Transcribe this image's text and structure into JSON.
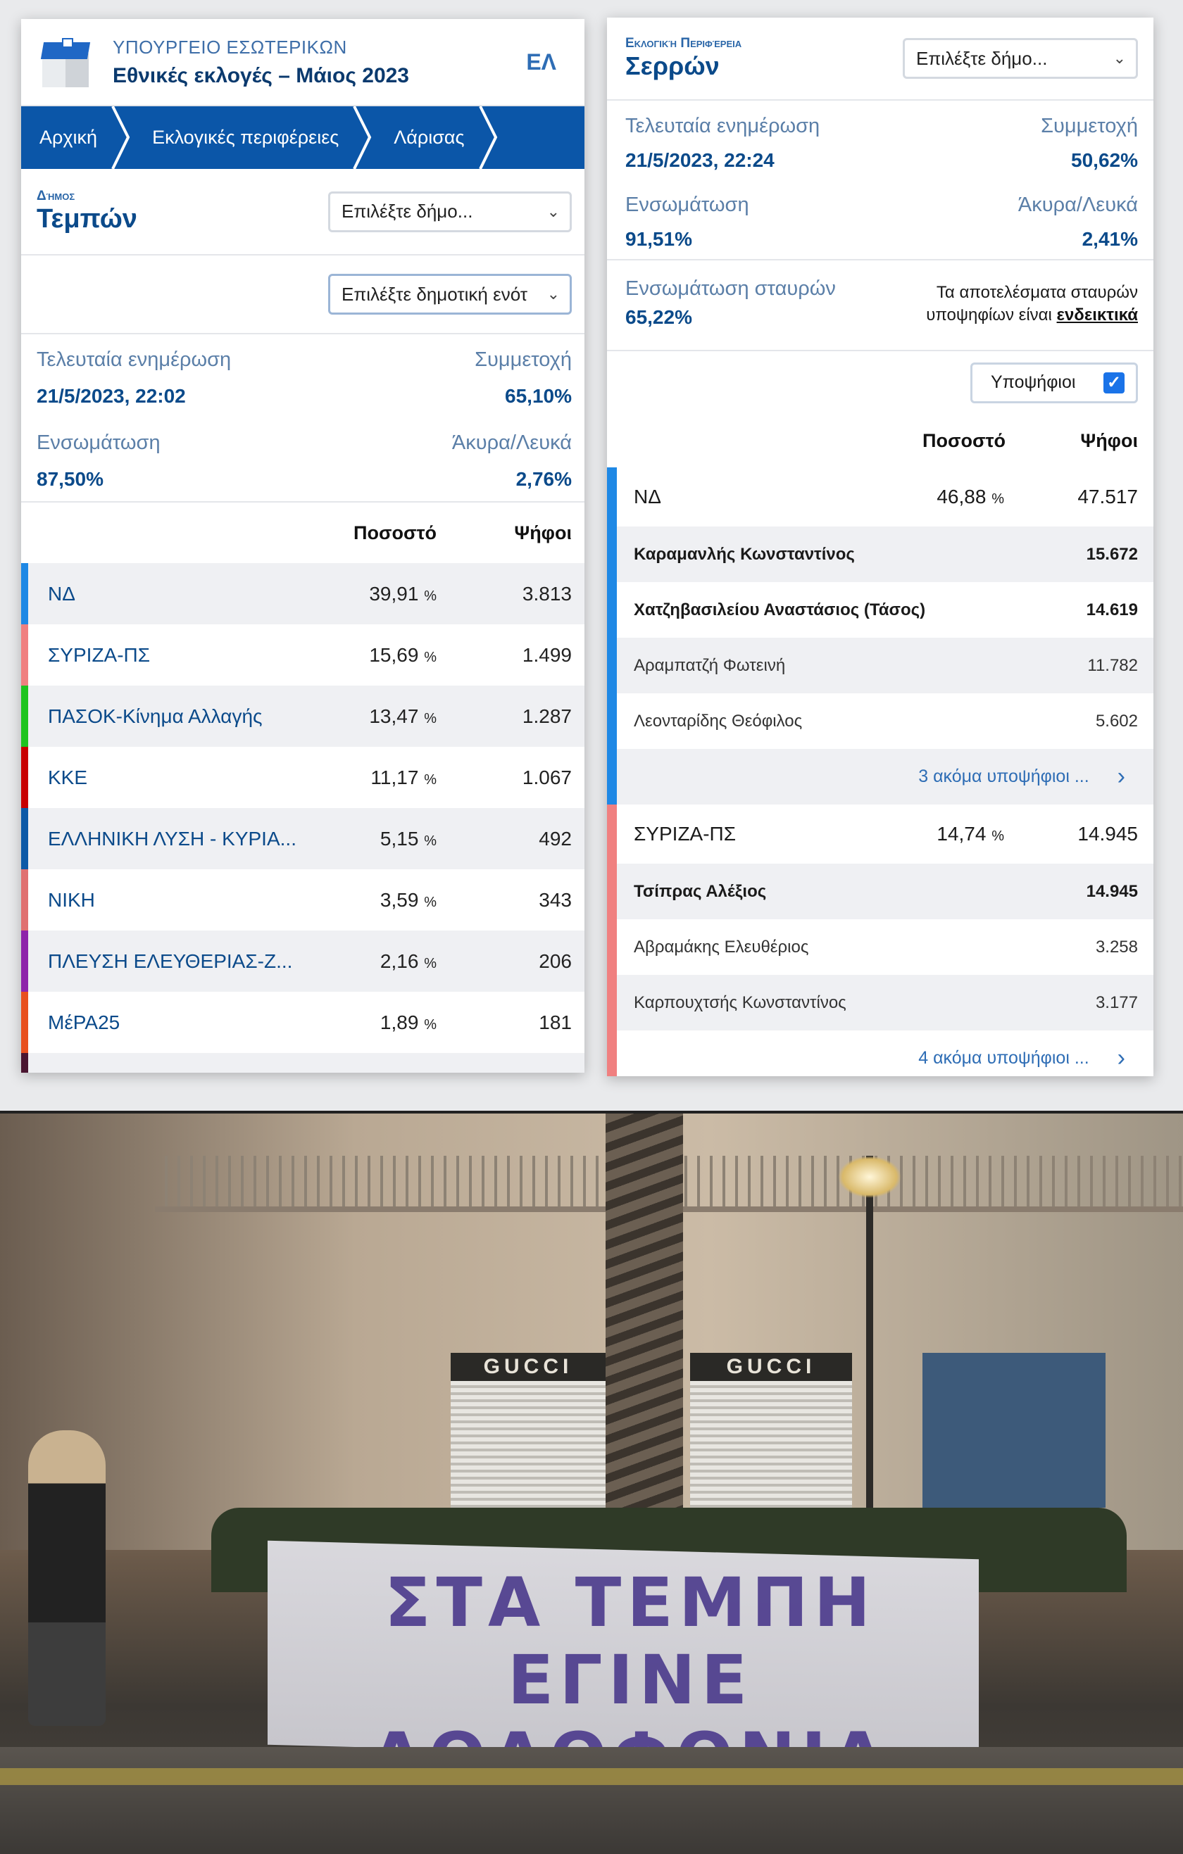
{
  "left_panel": {
    "header": {
      "ministry": "ΥΠΟΥΡΓΕΙΟ ΕΣΩΤΕΡΙΚΩΝ",
      "title": "Εθνικές εκλογές – Μάιος 2023",
      "language": "ΕΛ"
    },
    "breadcrumb": [
      "Αρχική",
      "Εκλογικές περιφέρειες",
      "Λάρισας"
    ],
    "area": {
      "caption": "Δήμος",
      "name": "Τεμπών",
      "select_placeholder": "Επιλέξτε δήμο...",
      "unit_select_placeholder": "Επιλέξτε δημοτική ενότ"
    },
    "stats": {
      "last_update_label": "Τελευταία ενημέρωση",
      "last_update": "21/5/2023, 22:02",
      "turnout_label": "Συμμετοχή",
      "turnout": "65,10%",
      "integration_label": "Ενσωμάτωση",
      "integration": "87,50%",
      "invalid_label": "Άκυρα/Λευκά",
      "invalid": "2,76%"
    },
    "table": {
      "headers": {
        "percent": "Ποσοστό",
        "votes": "Ψήφοι"
      },
      "rows": [
        {
          "party": "ΝΔ",
          "percent": "39,91",
          "votes": "3.813",
          "color": "#1e88e5"
        },
        {
          "party": "ΣΥΡΙΖΑ-ΠΣ",
          "percent": "15,69",
          "votes": "1.499",
          "color": "#f08080"
        },
        {
          "party": "ΠΑΣΟΚ-Κίνημα Αλλαγής",
          "percent": "13,47",
          "votes": "1.287",
          "color": "#1fc41f"
        },
        {
          "party": "ΚΚΕ",
          "percent": "11,17",
          "votes": "1.067",
          "color": "#c80000"
        },
        {
          "party": "ΕΛΛΗΝΙΚΗ ΛΥΣΗ - ΚΥΡΙΑ...",
          "percent": "5,15",
          "votes": "492",
          "color": "#0d5aa7"
        },
        {
          "party": "ΝΙΚΗ",
          "percent": "3,59",
          "votes": "343",
          "color": "#e07070"
        },
        {
          "party": "ΠΛΕΥΣΗ ΕΛΕΥΘΕΡΙΑΣ-Ζ...",
          "percent": "2,16",
          "votes": "206",
          "color": "#8e24aa"
        },
        {
          "party": "ΜέΡΑ25",
          "percent": "1,89",
          "votes": "181",
          "color": "#e8501e"
        }
      ],
      "percent_sign": "%"
    }
  },
  "right_panel": {
    "area": {
      "caption": "Εκλογική Περιφέρεια",
      "name": "Σερρών",
      "select_placeholder": "Επιλέξτε δήμο..."
    },
    "stats": {
      "last_update_label": "Τελευταία ενημέρωση",
      "last_update": "21/5/2023, 22:24",
      "turnout_label": "Συμμετοχή",
      "turnout": "50,62%",
      "integration_label": "Ενσωμάτωση",
      "integration": "91,51%",
      "invalid_label": "Άκυρα/Λευκά",
      "invalid": "2,41%"
    },
    "cross": {
      "label": "Ενσωμάτωση σταυρών",
      "value": "65,22%",
      "note_prefix": "Τα αποτελέσματα σταυρών υποψηφίων είναι",
      "note_link": "ενδεικτικά"
    },
    "candidates_toggle": {
      "label": "Υποψήφιοι",
      "checked": true
    },
    "table": {
      "headers": {
        "percent": "Ποσοστό",
        "votes": "Ψήφοι"
      },
      "parties": [
        {
          "party": "ΝΔ",
          "percent": "46,88",
          "votes": "47.517",
          "color": "#1e88e5",
          "candidates": [
            {
              "name": "Καραμανλής Κωνσταντίνος",
              "votes": "15.672",
              "bold": true
            },
            {
              "name": "Χατζηβασιλείου Αναστάσιος (Τάσος)",
              "votes": "14.619",
              "bold": true
            },
            {
              "name": "Αραμπατζή Φωτεινή",
              "votes": "11.782",
              "bold": false
            },
            {
              "name": "Λεονταρίδης Θεόφιλος",
              "votes": "5.602",
              "bold": false
            }
          ],
          "more": "3 ακόμα υποψήφιοι ..."
        },
        {
          "party": "ΣΥΡΙΖΑ-ΠΣ",
          "percent": "14,74",
          "votes": "14.945",
          "color": "#f08080",
          "candidates": [
            {
              "name": "Τσίπρας Αλέξιος",
              "votes": "14.945",
              "bold": true
            },
            {
              "name": "Αβραμάκης Ελευθέριος",
              "votes": "3.258",
              "bold": false
            },
            {
              "name": "Καρπουχτσής Κωνσταντίνος",
              "votes": "3.177",
              "bold": false
            }
          ],
          "more": "4 ακόμα υποψήφιοι ..."
        }
      ],
      "percent_sign": "%"
    }
  },
  "photo": {
    "shop_signs": [
      "GUCCI",
      "GUCCI"
    ],
    "graffiti_line1": "ΣΤΑ ΤΕΜΠΗ ΕΓΙΝΕ",
    "graffiti_line2": "ΔΟΛΟΦΟΝΙΑ",
    "graffiti_color": "#4b3a8c"
  }
}
